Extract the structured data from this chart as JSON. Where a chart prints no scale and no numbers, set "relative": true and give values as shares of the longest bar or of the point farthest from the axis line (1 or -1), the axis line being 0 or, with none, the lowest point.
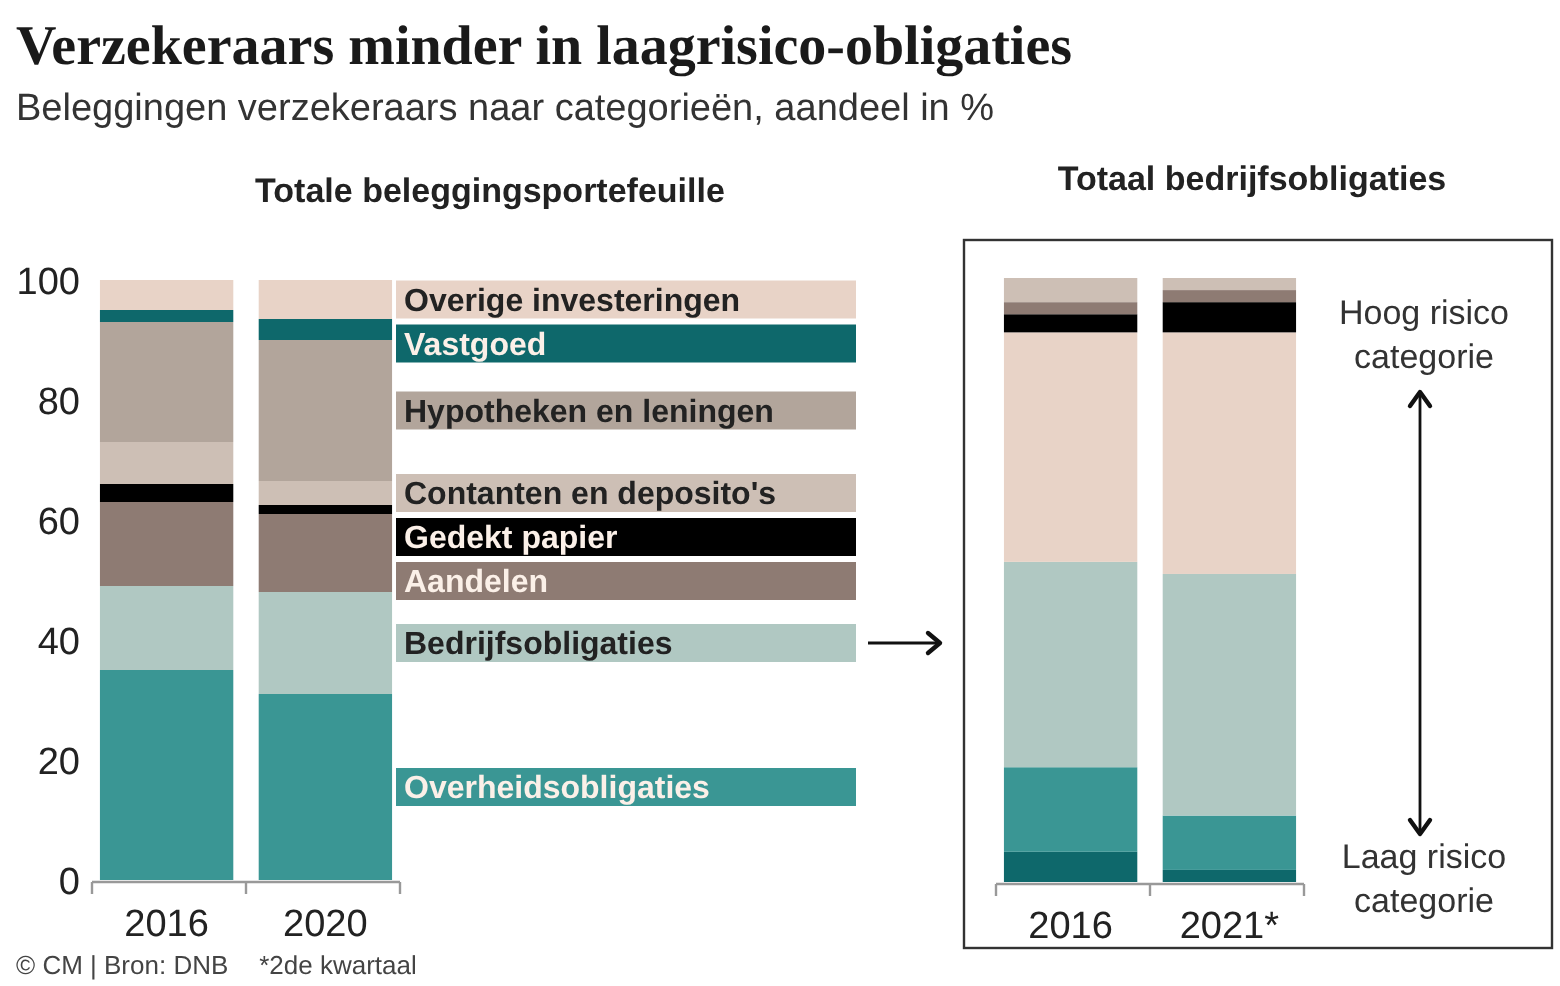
{
  "chart_data": [
    {
      "type": "bar",
      "title": "Verzekeraars minder in laagrisico-obligaties",
      "subtitle": "Beleggingen verzekeraars naar categorieën, aandeel in %",
      "annotations": [
        "Totale beleggingsportefeuille",
        "© CM | Bron: DNB"
      ],
      "categories": [
        "2016",
        "2020"
      ],
      "stacked": true,
      "ylim": [
        0,
        100
      ],
      "yticks": [
        0,
        20,
        40,
        60,
        80,
        100
      ],
      "legend": "right",
      "series": [
        {
          "name": "Overheidsobligaties",
          "color": "#3a9694",
          "values": [
            35,
            31
          ]
        },
        {
          "name": "Bedrijfsobligaties",
          "color": "#b0c8c2",
          "values": [
            14,
            17
          ]
        },
        {
          "name": "Aandelen",
          "color": "#8e7b73",
          "values": [
            14,
            13
          ]
        },
        {
          "name": "Gedekt papier",
          "color": "#000000",
          "values": [
            3,
            1.5
          ]
        },
        {
          "name": "Contanten en deposito's",
          "color": "#cdbfb5",
          "values": [
            7,
            4
          ]
        },
        {
          "name": "Hypotheken en leningen",
          "color": "#b2a59b",
          "values": [
            20,
            23.5
          ]
        },
        {
          "name": "Vastgoed",
          "color": "#0e686b",
          "values": [
            2,
            3.5
          ]
        },
        {
          "name": "Overige investeringen",
          "color": "#e8d3c7",
          "values": [
            5,
            6.5
          ]
        }
      ]
    },
    {
      "type": "bar",
      "title": "Totaal bedrijfsobligaties",
      "annotations": [
        "Hoog risico categorie",
        "Laag risico categorie",
        "*2de kwartaal"
      ],
      "categories": [
        "2016",
        "2021*"
      ],
      "stacked": true,
      "relative": true,
      "series": [
        {
          "color": "#0e686b",
          "values": [
            0.05,
            0.02
          ]
        },
        {
          "color": "#3a9694",
          "values": [
            0.14,
            0.09
          ]
        },
        {
          "color": "#b0c8c2",
          "values": [
            0.34,
            0.4
          ]
        },
        {
          "color": "#e8d3c7",
          "values": [
            0.38,
            0.4
          ]
        },
        {
          "color": "#000000",
          "values": [
            0.03,
            0.05
          ]
        },
        {
          "color": "#8e7b73",
          "values": [
            0.02,
            0.02
          ]
        },
        {
          "color": "#cdbfb5",
          "values": [
            0.04,
            0.02
          ]
        }
      ]
    }
  ]
}
